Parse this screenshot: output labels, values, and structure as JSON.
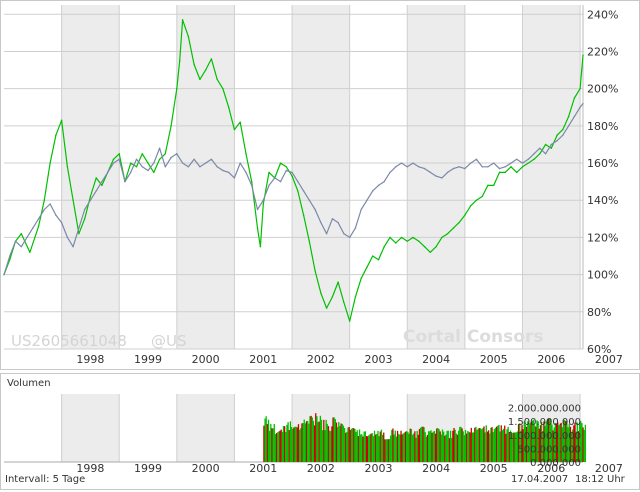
{
  "watermark": {
    "isin": "US2605661048",
    "exchange": "@US",
    "brand": "Cortal Consors"
  },
  "volume_panel": {
    "title": "Volumen",
    "interval": "Intervall: 5 Tage",
    "date": "17.04.2007",
    "time": "18:12 Uhr"
  },
  "colors": {
    "green": "#00c000",
    "gray": "#7b89a8",
    "band": "#ececec",
    "grid": "#cfcfcf",
    "vol_red": "#cc0000"
  },
  "chart_data": [
    {
      "type": "line",
      "title": "",
      "ylim": [
        60,
        245
      ],
      "xlim": [
        1997.0,
        2007.05
      ],
      "y_ticks": [
        "60%",
        "80%",
        "100%",
        "120%",
        "140%",
        "160%",
        "180%",
        "200%",
        "220%",
        "240%"
      ],
      "x_ticks": [
        "1998",
        "1999",
        "2000",
        "2001",
        "2002",
        "2003",
        "2004",
        "2005",
        "2006",
        "2007"
      ],
      "shaded_years": [
        1998,
        2000,
        2002,
        2004,
        2006
      ],
      "y_axis_position": "right",
      "series": [
        {
          "color": "green",
          "x": [
            1997.0,
            1997.1,
            1997.2,
            1997.3,
            1997.45,
            1997.6,
            1997.7,
            1997.8,
            1997.9,
            1998.0,
            1998.1,
            1998.2,
            1998.3,
            1998.4,
            1998.5,
            1998.6,
            1998.7,
            1998.8,
            1998.9,
            1999.0,
            1999.1,
            1999.2,
            1999.3,
            1999.4,
            1999.5,
            1999.6,
            1999.7,
            1999.8,
            1999.9,
            2000.0,
            2000.05,
            2000.1,
            2000.2,
            2000.3,
            2000.4,
            2000.5,
            2000.6,
            2000.7,
            2000.8,
            2000.9,
            2001.0,
            2001.1,
            2001.2,
            2001.3,
            2001.4,
            2001.45,
            2001.5,
            2001.6,
            2001.7,
            2001.8,
            2001.9,
            2002.0,
            2002.1,
            2002.2,
            2002.3,
            2002.4,
            2002.5,
            2002.6,
            2002.7,
            2002.8,
            2002.9,
            2003.0,
            2003.1,
            2003.2,
            2003.3,
            2003.4,
            2003.5,
            2003.6,
            2003.7,
            2003.8,
            2003.9,
            2004.0,
            2004.1,
            2004.2,
            2004.3,
            2004.4,
            2004.5,
            2004.6,
            2004.7,
            2004.8,
            2004.9,
            2005.0,
            2005.1,
            2005.2,
            2005.3,
            2005.4,
            2005.5,
            2005.6,
            2005.7,
            2005.8,
            2005.9,
            2006.0,
            2006.1,
            2006.2,
            2006.3,
            2006.4,
            2006.5,
            2006.6,
            2006.7,
            2006.8,
            2006.9,
            2007.0,
            2007.05
          ],
          "y": [
            100,
            108,
            118,
            122,
            112,
            126,
            140,
            160,
            175,
            183,
            158,
            140,
            122,
            130,
            142,
            152,
            148,
            155,
            162,
            165,
            150,
            160,
            158,
            165,
            160,
            155,
            162,
            165,
            180,
            200,
            215,
            237,
            228,
            213,
            205,
            210,
            216,
            205,
            200,
            190,
            178,
            182,
            165,
            150,
            125,
            115,
            138,
            155,
            152,
            160,
            158,
            153,
            145,
            132,
            118,
            102,
            90,
            82,
            88,
            96,
            85,
            75,
            88,
            98,
            104,
            110,
            108,
            115,
            120,
            117,
            120,
            118,
            120,
            118,
            115,
            112,
            115,
            120,
            122,
            125,
            128,
            132,
            137,
            140,
            142,
            148,
            148,
            155,
            155,
            158,
            155,
            158,
            160,
            162,
            165,
            170,
            168,
            175,
            178,
            185,
            195,
            200,
            218
          ]
        },
        {
          "color": "gray",
          "x": [
            1997.0,
            1997.1,
            1997.2,
            1997.3,
            1997.4,
            1997.5,
            1997.6,
            1997.7,
            1997.8,
            1997.9,
            1998.0,
            1998.1,
            1998.2,
            1998.3,
            1998.4,
            1998.5,
            1998.6,
            1998.7,
            1998.8,
            1998.9,
            1999.0,
            1999.1,
            1999.2,
            1999.3,
            1999.4,
            1999.5,
            1999.6,
            1999.7,
            1999.8,
            1999.9,
            2000.0,
            2000.1,
            2000.2,
            2000.3,
            2000.4,
            2000.5,
            2000.6,
            2000.7,
            2000.8,
            2000.9,
            2001.0,
            2001.1,
            2001.2,
            2001.3,
            2001.4,
            2001.5,
            2001.6,
            2001.7,
            2001.8,
            2001.9,
            2002.0,
            2002.1,
            2002.2,
            2002.3,
            2002.4,
            2002.5,
            2002.6,
            2002.7,
            2002.8,
            2002.9,
            2003.0,
            2003.1,
            2003.2,
            2003.3,
            2003.4,
            2003.5,
            2003.6,
            2003.7,
            2003.8,
            2003.9,
            2004.0,
            2004.1,
            2004.2,
            2004.3,
            2004.4,
            2004.5,
            2004.6,
            2004.7,
            2004.8,
            2004.9,
            2005.0,
            2005.1,
            2005.2,
            2005.3,
            2005.4,
            2005.5,
            2005.6,
            2005.7,
            2005.8,
            2005.9,
            2006.0,
            2006.1,
            2006.2,
            2006.3,
            2006.4,
            2006.5,
            2006.6,
            2006.7,
            2006.8,
            2006.9,
            2007.0,
            2007.05
          ],
          "y": [
            100,
            110,
            118,
            115,
            120,
            125,
            130,
            135,
            138,
            132,
            128,
            120,
            115,
            125,
            135,
            140,
            145,
            150,
            155,
            160,
            162,
            150,
            155,
            162,
            158,
            156,
            160,
            168,
            158,
            163,
            165,
            160,
            158,
            162,
            158,
            160,
            162,
            158,
            156,
            155,
            152,
            160,
            155,
            148,
            135,
            140,
            148,
            152,
            150,
            156,
            155,
            150,
            145,
            140,
            135,
            128,
            122,
            130,
            128,
            122,
            120,
            125,
            135,
            140,
            145,
            148,
            150,
            155,
            158,
            160,
            158,
            160,
            158,
            157,
            155,
            153,
            152,
            155,
            157,
            158,
            157,
            160,
            162,
            158,
            158,
            160,
            157,
            158,
            160,
            162,
            160,
            162,
            165,
            168,
            165,
            170,
            172,
            175,
            180,
            185,
            190,
            192
          ]
        }
      ]
    },
    {
      "type": "bar",
      "title": "Volumen",
      "ylim": [
        0,
        2500000000
      ],
      "y_ticks": [
        "0.000.000",
        "500.000.000",
        "1.000.000.000",
        "1.500.000.000",
        "2.000.000.000"
      ],
      "x_ticks": [
        "1998",
        "1999",
        "2000",
        "2001",
        "2002",
        "2003",
        "2004",
        "2005",
        "2006",
        "2007"
      ],
      "series": [
        {
          "name": "Volumen",
          "x": [
            2001.5,
            2001.6,
            2001.7,
            2001.8,
            2001.9,
            2002.0,
            2002.1,
            2002.2,
            2002.3,
            2002.4,
            2002.5,
            2002.6,
            2002.7,
            2002.8,
            2002.9,
            2003.0,
            2003.1,
            2003.2,
            2003.3,
            2003.4,
            2003.5,
            2003.6,
            2003.7,
            2003.8,
            2003.9,
            2004.0,
            2004.1,
            2004.2,
            2004.3,
            2004.4,
            2004.5,
            2004.6,
            2004.7,
            2004.8,
            2004.9,
            2005.0,
            2005.1,
            2005.2,
            2005.3,
            2005.4,
            2005.5,
            2005.6,
            2005.7,
            2005.8,
            2005.9,
            2006.0,
            2006.1,
            2006.2,
            2006.3,
            2006.4,
            2006.5,
            2006.6,
            2006.7,
            2006.8,
            2006.9,
            2007.0
          ],
          "values": [
            1700000000,
            1400000000,
            1200000000,
            1350000000,
            1500000000,
            1300000000,
            1450000000,
            1600000000,
            1700000000,
            1800000000,
            1550000000,
            1400000000,
            1650000000,
            1500000000,
            1300000000,
            1250000000,
            1200000000,
            1150000000,
            1100000000,
            1150000000,
            1200000000,
            1100000000,
            1250000000,
            1150000000,
            1200000000,
            1250000000,
            1150000000,
            1300000000,
            1150000000,
            1200000000,
            1250000000,
            1200000000,
            1150000000,
            1250000000,
            1300000000,
            1200000000,
            1300000000,
            1250000000,
            1350000000,
            1300000000,
            1400000000,
            1350000000,
            1300000000,
            1400000000,
            1450000000,
            1500000000,
            1650000000,
            1550000000,
            1500000000,
            1600000000,
            1450000000,
            1500000000,
            1550000000,
            1400000000,
            1450000000,
            1500000000
          ]
        }
      ]
    }
  ]
}
